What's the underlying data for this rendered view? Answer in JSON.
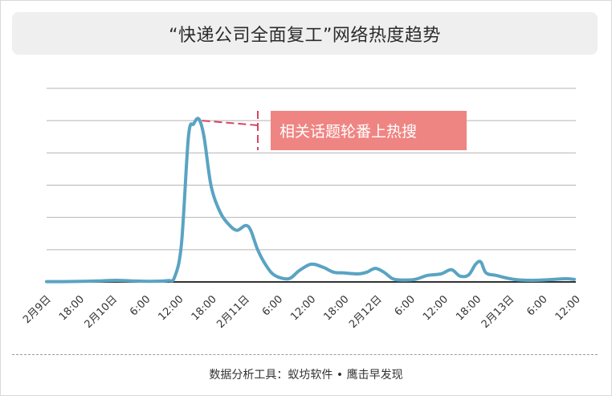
{
  "title": "“快递公司全面复工”网络热度趋势",
  "source": "数据分析工具：蚁坊软件 • 鹰击早发现",
  "colors": {
    "line": "#5aa3c3",
    "grid": "#b5b5b5",
    "baseline": "#333333",
    "annotation_bg": "#ef8582",
    "annotation_text": "#ffffff",
    "annotation_dash": "#d9455f"
  },
  "chart_data": {
    "type": "line",
    "title": "“快递公司全面复工”网络热度趋势",
    "grid": true,
    "y_ticks_shown": false,
    "ylim": [
      0,
      6
    ],
    "x_tick_labels": [
      "2月9日",
      "18:00",
      "2月10日",
      "6:00",
      "12:00",
      "18:00",
      "2月11日",
      "6:00",
      "12:00",
      "18:00",
      "2月12日",
      "6:00",
      "12:00",
      "18:00",
      "2月13日",
      "6:00",
      "12:00"
    ],
    "x_step_hours": 6,
    "annotation": {
      "text": "相关话题轮番上热搜",
      "x": 14.3,
      "y": 5.1
    },
    "series": [
      {
        "points": [
          [
            0,
            0.01
          ],
          [
            1,
            0.01
          ],
          [
            2,
            0.02
          ],
          [
            3,
            0.03
          ],
          [
            4,
            0.05
          ],
          [
            5,
            0.03
          ],
          [
            6,
            0.02
          ],
          [
            7,
            0.04
          ],
          [
            7.4,
            0.15
          ],
          [
            7.8,
            1.2
          ],
          [
            8.2,
            4.5
          ],
          [
            8.5,
            4.9
          ],
          [
            8.8,
            5.05
          ],
          [
            9.1,
            4.5
          ],
          [
            9.5,
            3.0
          ],
          [
            10,
            2.2
          ],
          [
            10.5,
            1.8
          ],
          [
            11,
            1.6
          ],
          [
            11.5,
            1.75
          ],
          [
            11.8,
            1.6
          ],
          [
            12.2,
            1.0
          ],
          [
            12.7,
            0.5
          ],
          [
            13.2,
            0.2
          ],
          [
            14,
            0.1
          ],
          [
            14.6,
            0.35
          ],
          [
            15.3,
            0.55
          ],
          [
            16,
            0.45
          ],
          [
            16.6,
            0.3
          ],
          [
            17.2,
            0.28
          ],
          [
            18,
            0.25
          ],
          [
            18.5,
            0.3
          ],
          [
            19,
            0.42
          ],
          [
            19.5,
            0.3
          ],
          [
            20,
            0.1
          ],
          [
            20.5,
            0.06
          ],
          [
            21.3,
            0.08
          ],
          [
            22,
            0.2
          ],
          [
            22.8,
            0.25
          ],
          [
            23.4,
            0.38
          ],
          [
            23.9,
            0.18
          ],
          [
            24.4,
            0.22
          ],
          [
            24.8,
            0.55
          ],
          [
            25.1,
            0.62
          ],
          [
            25.4,
            0.28
          ],
          [
            26,
            0.2
          ],
          [
            27,
            0.08
          ],
          [
            28,
            0.05
          ],
          [
            29,
            0.07
          ],
          [
            30,
            0.1
          ],
          [
            30.5,
            0.08
          ]
        ]
      }
    ]
  }
}
